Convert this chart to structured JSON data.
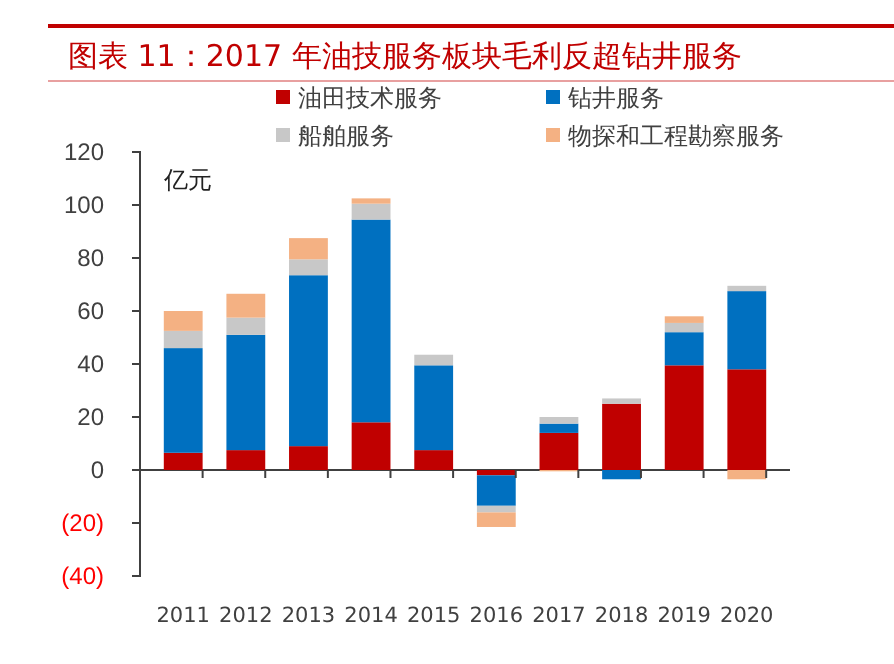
{
  "chart_data": {
    "type": "bar",
    "title": "图表 11：2017 年油技服务板块毛利反超钻井服务",
    "stacked": true,
    "legend": "top",
    "categories": [
      "2011",
      "2012",
      "2013",
      "2014",
      "2015",
      "2016",
      "2017",
      "2018",
      "2019",
      "2020"
    ],
    "series": [
      {
        "name": "油田技术服务",
        "color": "#c00000",
        "values": [
          6.5,
          7.5,
          9,
          18,
          7.5,
          -2,
          14,
          25,
          39.5,
          38
        ]
      },
      {
        "name": "钻井服务",
        "color": "#0070c0",
        "values": [
          39.5,
          43.5,
          64.5,
          76.5,
          32,
          -11.5,
          3.5,
          -3.5,
          12.5,
          29.5
        ]
      },
      {
        "name": "船舶服务",
        "color": "#c8c8c8",
        "values": [
          6.5,
          6.5,
          6,
          6,
          4,
          -2.5,
          2.5,
          2,
          3.5,
          2
        ]
      },
      {
        "name": "物探和工程勘察服务",
        "color": "#f4b183",
        "values": [
          7.5,
          9,
          8,
          2,
          0,
          -5.5,
          -0.5,
          0,
          2.5,
          -3.5
        ]
      }
    ],
    "ylim": [
      -40,
      120
    ],
    "yticks": [
      {
        "value": -40,
        "label": "(40)"
      },
      {
        "value": -20,
        "label": "(20)"
      },
      0,
      20,
      40,
      60,
      80,
      100,
      120
    ],
    "annotations": [
      "亿元"
    ]
  }
}
